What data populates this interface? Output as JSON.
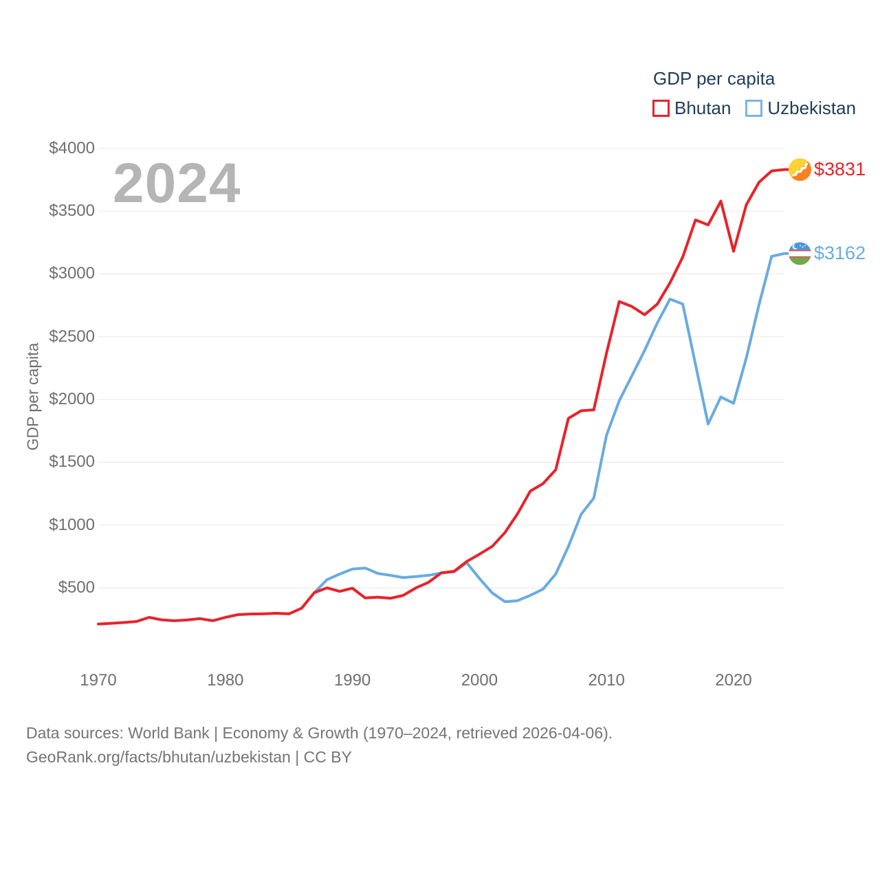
{
  "watermark": "2024",
  "legend": {
    "title": "GDP per capita",
    "items": [
      {
        "label": "Bhutan",
        "color": "#e8232a"
      },
      {
        "label": "Uzbekistan",
        "color": "#7cb3e4"
      }
    ]
  },
  "y_axis_label": "GDP per capita",
  "footer": {
    "line1": "Data sources: World Bank | Economy & Growth (1970–2024, retrieved 2026-04-06).",
    "line2": "GeoRank.org/facts/bhutan/uzbekistan | CC BY"
  },
  "chart_data": {
    "type": "line",
    "title": "GDP per capita",
    "unit": "current US$",
    "x_start": 1970,
    "x_end": 2024,
    "xticks": [
      1970,
      1980,
      1990,
      2000,
      2010,
      2020
    ],
    "yticks": [
      500,
      1000,
      1500,
      2000,
      2500,
      3000,
      3500,
      4000
    ],
    "ytick_prefix": "$",
    "ylim": [
      0,
      4100
    ],
    "grid": "horizontal",
    "legend_position": "top-right",
    "series": [
      {
        "name": "Bhutan",
        "color": "#e8232a",
        "end_label": "$3831",
        "end_value": 3831,
        "flag": "bhutan",
        "values": [
          212,
          218,
          224,
          232,
          265,
          245,
          238,
          244,
          255,
          238,
          265,
          287,
          292,
          293,
          298,
          293,
          338,
          462,
          500,
          472,
          497,
          420,
          426,
          417,
          440,
          500,
          545,
          620,
          632,
          710,
          768,
          830,
          940,
          1090,
          1270,
          1330,
          1440,
          1850,
          1910,
          1918,
          2370,
          2780,
          2740,
          2675,
          2760,
          2930,
          3135,
          3430,
          3390,
          3580,
          3180,
          3550,
          3730,
          3820,
          3831
        ]
      },
      {
        "name": "Uzbekistan",
        "color": "#6aabe0",
        "end_label": "$3162",
        "end_value": 3162,
        "flag": "uzbekistan",
        "values": [
          null,
          null,
          null,
          null,
          null,
          null,
          null,
          null,
          null,
          null,
          null,
          null,
          null,
          null,
          null,
          null,
          null,
          462,
          565,
          610,
          650,
          658,
          615,
          600,
          582,
          590,
          600,
          618,
          628,
          700,
          575,
          460,
          390,
          398,
          440,
          490,
          610,
          830,
          1085,
          1215,
          1715,
          1990,
          2190,
          2390,
          2610,
          2800,
          2760,
          2280,
          1805,
          2020,
          1970,
          2330,
          2755,
          3140,
          3162
        ]
      }
    ]
  }
}
